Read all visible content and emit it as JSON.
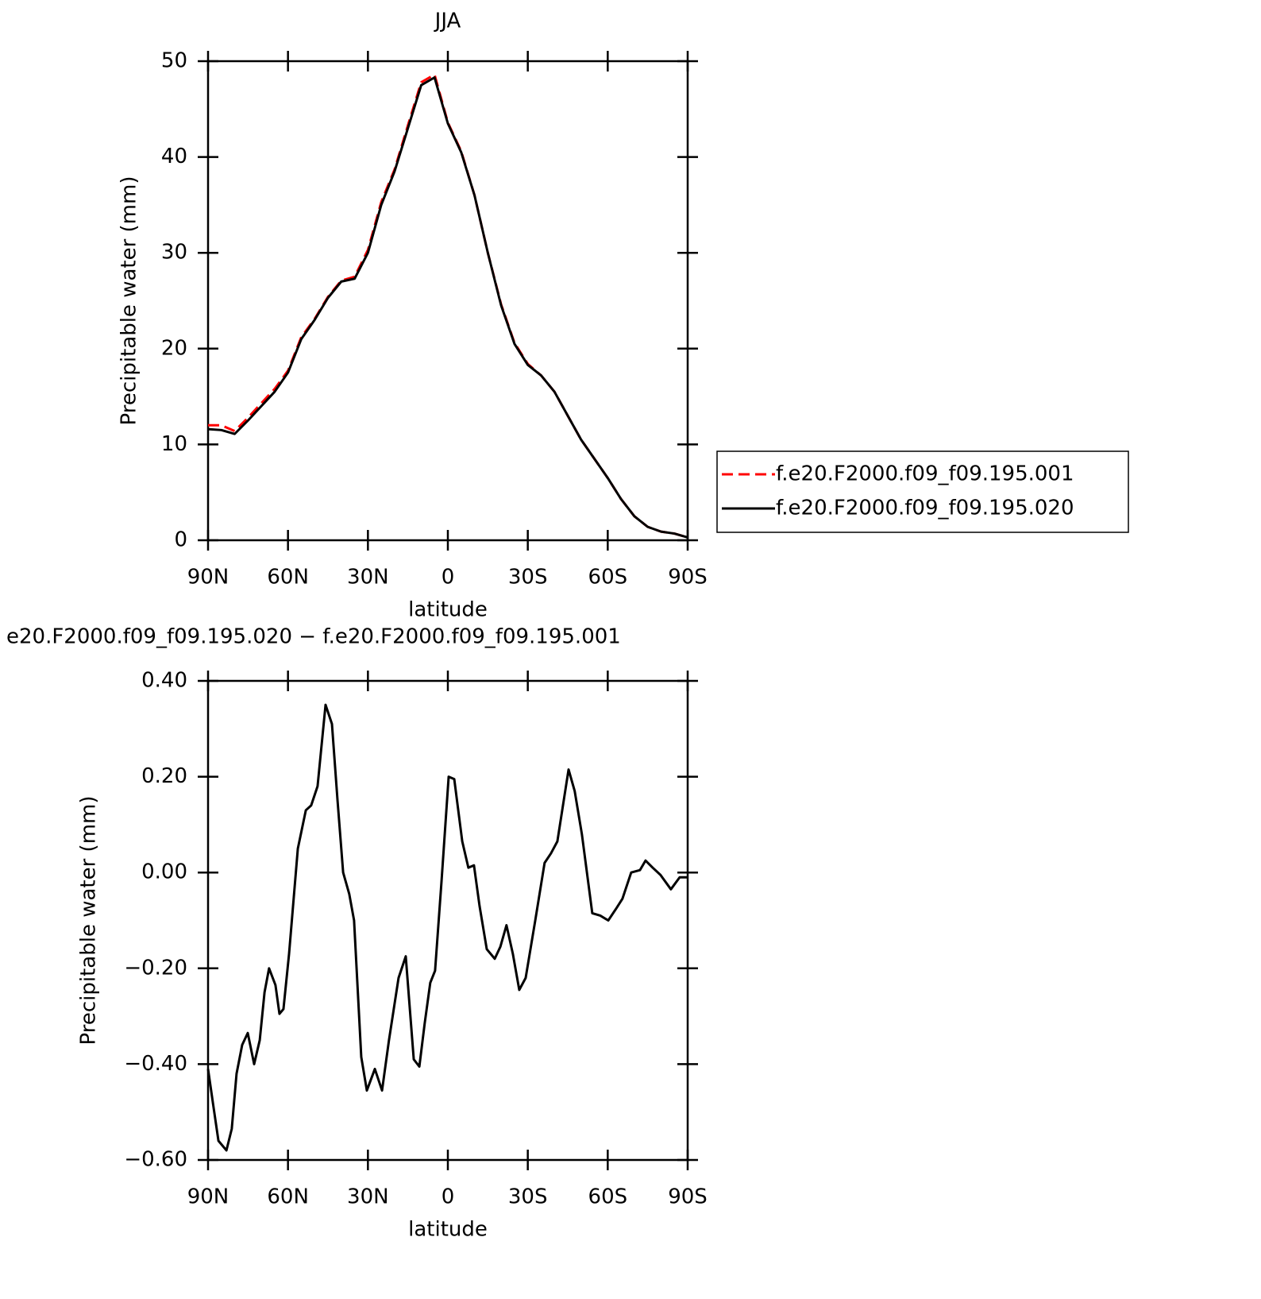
{
  "chart_data": [
    {
      "type": "line",
      "title": "JJA",
      "xlabel": "latitude",
      "ylabel": "Precipitable water (mm)",
      "x": [
        90,
        85,
        80,
        75,
        70,
        65,
        60,
        55,
        50,
        45,
        40,
        35,
        30,
        25,
        20,
        15,
        10,
        5,
        0,
        -5,
        -10,
        -15,
        -20,
        -25,
        -30,
        -35,
        -40,
        -45,
        -50,
        -55,
        -60,
        -65,
        -70,
        -75,
        -80,
        -85,
        -90
      ],
      "series": [
        {
          "name": "f.e20.F2000.f09_f09.195.001",
          "color": "#ff0000",
          "dashed": true,
          "values": [
            12.0,
            12.0,
            11.4,
            12.8,
            14.3,
            15.8,
            17.7,
            21.2,
            23.1,
            25.4,
            27.1,
            27.5,
            30.3,
            35.3,
            38.7,
            43.3,
            47.8,
            48.6,
            43.6,
            40.6,
            36.0,
            30.0,
            24.6,
            20.6,
            18.4,
            17.2,
            15.5,
            13.0,
            10.5,
            8.5,
            6.5,
            4.3,
            2.5,
            1.4,
            0.9,
            0.7,
            0.3
          ]
        },
        {
          "name": "f.e20.F2000.f09_f09.195.020",
          "color": "#000000",
          "dashed": false,
          "values": [
            11.6,
            11.5,
            11.1,
            12.5,
            14.0,
            15.5,
            17.5,
            21.0,
            23.0,
            25.3,
            27.0,
            27.3,
            30.0,
            35.0,
            38.5,
            43.0,
            47.5,
            48.3,
            43.5,
            40.5,
            36.0,
            30.0,
            24.5,
            20.5,
            18.3,
            17.2,
            15.5,
            13.0,
            10.5,
            8.5,
            6.5,
            4.3,
            2.5,
            1.4,
            0.9,
            0.7,
            0.3
          ]
        }
      ],
      "xlim": [
        90,
        -90
      ],
      "xticks": [
        {
          "value": 90,
          "label": "90N"
        },
        {
          "value": 60,
          "label": "60N"
        },
        {
          "value": 30,
          "label": "30N"
        },
        0,
        {
          "value": -30,
          "label": "30S"
        },
        {
          "value": -60,
          "label": "60S"
        },
        {
          "value": -90,
          "label": "90S"
        }
      ],
      "ylim": [
        0,
        50
      ],
      "yticks": [
        0,
        10,
        20,
        30,
        40,
        50
      ],
      "legend": "right"
    },
    {
      "type": "line",
      "title": "e20.F2000.f09_f09.195.020 − f.e20.F2000.f09_f09.195.001",
      "xlabel": "latitude",
      "ylabel": "Precipitable water (mm)",
      "x": [
        90,
        88.2,
        86.1,
        83.1,
        81.1,
        79.3,
        77.2,
        75.1,
        72.7,
        70.6,
        68.8,
        67.1,
        64.7,
        63.2,
        61.7,
        59.6,
        56.3,
        53.3,
        51.3,
        48.9,
        45.9,
        43.5,
        41.4,
        39.3,
        37.0,
        35.2,
        32.5,
        30.4,
        27.4,
        24.7,
        22.1,
        18.5,
        15.8,
        12.8,
        10.7,
        8.7,
        6.6,
        4.8,
        2.4,
        -0.3,
        -2.4,
        -5.4,
        -7.7,
        -9.8,
        -11.9,
        -14.6,
        -17.6,
        -19.7,
        -22.0,
        -24.4,
        -26.8,
        -29.2,
        -32.8,
        -36.3,
        -38.7,
        -41.1,
        -45.3,
        -47.6,
        -50.3,
        -54.2,
        -57.2,
        -60.2,
        -63.2,
        -65.5,
        -68.8,
        -72.1,
        -74.2,
        -76.9,
        -79.8,
        -83.7,
        -87.0,
        -90
      ],
      "series": [
        {
          "color": "#000000",
          "dashed": false,
          "values": [
            -0.41,
            -0.48,
            -0.56,
            -0.58,
            -0.535,
            -0.42,
            -0.36,
            -0.335,
            -0.4,
            -0.35,
            -0.25,
            -0.2,
            -0.235,
            -0.295,
            -0.285,
            -0.17,
            0.05,
            0.13,
            0.14,
            0.18,
            0.35,
            0.31,
            0.15,
            0.0,
            -0.045,
            -0.1,
            -0.385,
            -0.455,
            -0.41,
            -0.455,
            -0.35,
            -0.22,
            -0.175,
            -0.39,
            -0.405,
            -0.315,
            -0.23,
            -0.205,
            -0.02,
            0.2,
            0.195,
            0.065,
            0.01,
            0.015,
            -0.07,
            -0.16,
            -0.18,
            -0.155,
            -0.11,
            -0.17,
            -0.245,
            -0.22,
            -0.1,
            0.02,
            0.04,
            0.065,
            0.215,
            0.17,
            0.08,
            -0.085,
            -0.09,
            -0.1,
            -0.075,
            -0.055,
            0.0,
            0.005,
            0.025,
            0.01,
            -0.005,
            -0.035,
            -0.01,
            -0.01
          ]
        }
      ],
      "xlim": [
        90,
        -90
      ],
      "xticks": [
        {
          "value": 90,
          "label": "90N"
        },
        {
          "value": 60,
          "label": "60N"
        },
        {
          "value": 30,
          "label": "30N"
        },
        0,
        {
          "value": -30,
          "label": "30S"
        },
        {
          "value": -60,
          "label": "60S"
        },
        {
          "value": -90,
          "label": "90S"
        }
      ],
      "ylim": [
        -0.6,
        0.4
      ],
      "yticks": [
        {
          "value": -0.6,
          "label": "−0.60"
        },
        {
          "value": -0.4,
          "label": "−0.40"
        },
        {
          "value": -0.2,
          "label": "−0.20"
        },
        {
          "value": 0,
          "label": "0.00"
        },
        {
          "value": 0.2,
          "label": "0.20"
        },
        {
          "value": 0.4,
          "label": "0.40"
        }
      ]
    }
  ]
}
